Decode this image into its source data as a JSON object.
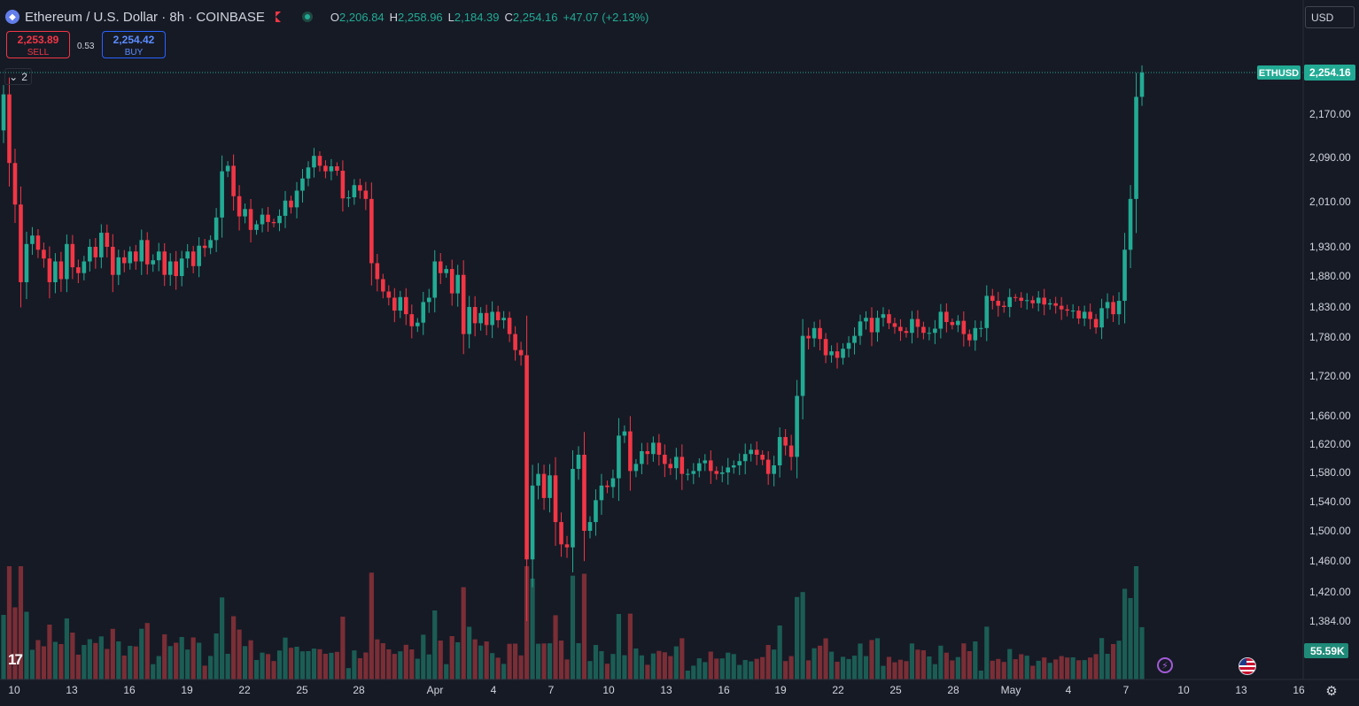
{
  "header": {
    "symbol_title": "Ethereum / U.S. Dollar · 8h · COINBASE",
    "ohlc": [
      {
        "key": "O",
        "value": "2,206.84"
      },
      {
        "key": "H",
        "value": "2,258.96"
      },
      {
        "key": "L",
        "value": "2,184.39"
      },
      {
        "key": "C",
        "value": "2,254.16"
      },
      {
        "key": "",
        "value": "+47.07 (+2.13%)"
      }
    ]
  },
  "trade": {
    "sell_price": "2,253.89",
    "sell_label": "SELL",
    "spread": "0.53",
    "buy_price": "2,254.42",
    "buy_label": "BUY"
  },
  "indicators": {
    "collapse_count": "2"
  },
  "currency": "USD",
  "colors": {
    "up": "#22ab94",
    "down": "#f23645",
    "background": "#161a25",
    "price_tag": "#22ab94"
  },
  "icons": [
    "ethereum-icon",
    "flag-icon",
    "market-status-icon",
    "chevron-down-icon",
    "tradingview-logo-icon",
    "lightning-icon",
    "us-flag-icon",
    "settings-icon"
  ],
  "chart_data": {
    "type": "candlestick",
    "price_axis": [
      "2,170.00",
      "2,090.00",
      "2,010.00",
      "1,930.00",
      "1,880.00",
      "1,830.00",
      "1,780.00",
      "1,720.00",
      "1,660.00",
      "1,620.00",
      "1,580.00",
      "1,540.00",
      "1,500.00",
      "1,460.00",
      "1,420.00",
      "1,384.00"
    ],
    "time_axis": [
      "10",
      "13",
      "16",
      "19",
      "22",
      "25",
      "28",
      "Apr",
      "4",
      "7",
      "10",
      "13",
      "16",
      "19",
      "22",
      "25",
      "28",
      "May",
      "4",
      "7",
      "10",
      "13",
      "16"
    ],
    "last_price_label": "ETHUSD",
    "last_price": "2,254.16",
    "volume_label": "55.59K",
    "closes": [
      2210,
      2080,
      2005,
      1870,
      1935,
      1950,
      1925,
      1910,
      1870,
      1905,
      1875,
      1935,
      1895,
      1885,
      1905,
      1930,
      1912,
      1955,
      1930,
      1882,
      1912,
      1902,
      1922,
      1905,
      1942,
      1900,
      1907,
      1922,
      1882,
      1905,
      1880,
      1910,
      1922,
      1897,
      1932,
      1928,
      1942,
      1982,
      2065,
      2075,
      2020,
      1984,
      1997,
      1960,
      1970,
      1987,
      1974,
      1972,
      1985,
      2012,
      2000,
      2030,
      2052,
      2072,
      2093,
      2075,
      2065,
      2074,
      2066,
      2016,
      2018,
      2040,
      2030,
      2015,
      1902,
      1875,
      1855,
      1845,
      1824,
      1846,
      1818,
      1798,
      1804,
      1838,
      1845,
      1905,
      1885,
      1892,
      1852,
      1882,
      1785,
      1830,
      1803,
      1820,
      1800,
      1822,
      1808,
      1812,
      1785,
      1760,
      1752,
      1462,
      1562,
      1578,
      1545,
      1576,
      1512,
      1482,
      1478,
      1585,
      1605,
      1500,
      1512,
      1542,
      1562,
      1560,
      1572,
      1632,
      1638,
      1582,
      1592,
      1610,
      1606,
      1622,
      1605,
      1592,
      1586,
      1602,
      1578,
      1578,
      1582,
      1593,
      1597,
      1582,
      1578,
      1580,
      1587,
      1590,
      1596,
      1606,
      1612,
      1605,
      1598,
      1578,
      1590,
      1630,
      1618,
      1602,
      1690,
      1782,
      1778,
      1795,
      1777,
      1752,
      1758,
      1748,
      1762,
      1771,
      1782,
      1806,
      1812,
      1788,
      1812,
      1818,
      1803,
      1797,
      1790,
      1787,
      1810,
      1797,
      1787,
      1787,
      1794,
      1822,
      1805,
      1800,
      1807,
      1785,
      1775,
      1795,
      1795,
      1848,
      1840,
      1832,
      1830,
      1846,
      1845,
      1840,
      1841,
      1836,
      1845,
      1834,
      1836,
      1832,
      1826,
      1824,
      1824,
      1811,
      1822,
      1810,
      1796,
      1828,
      1838,
      1818,
      1840,
      1925,
      2015,
      2205,
      2254
    ]
  }
}
